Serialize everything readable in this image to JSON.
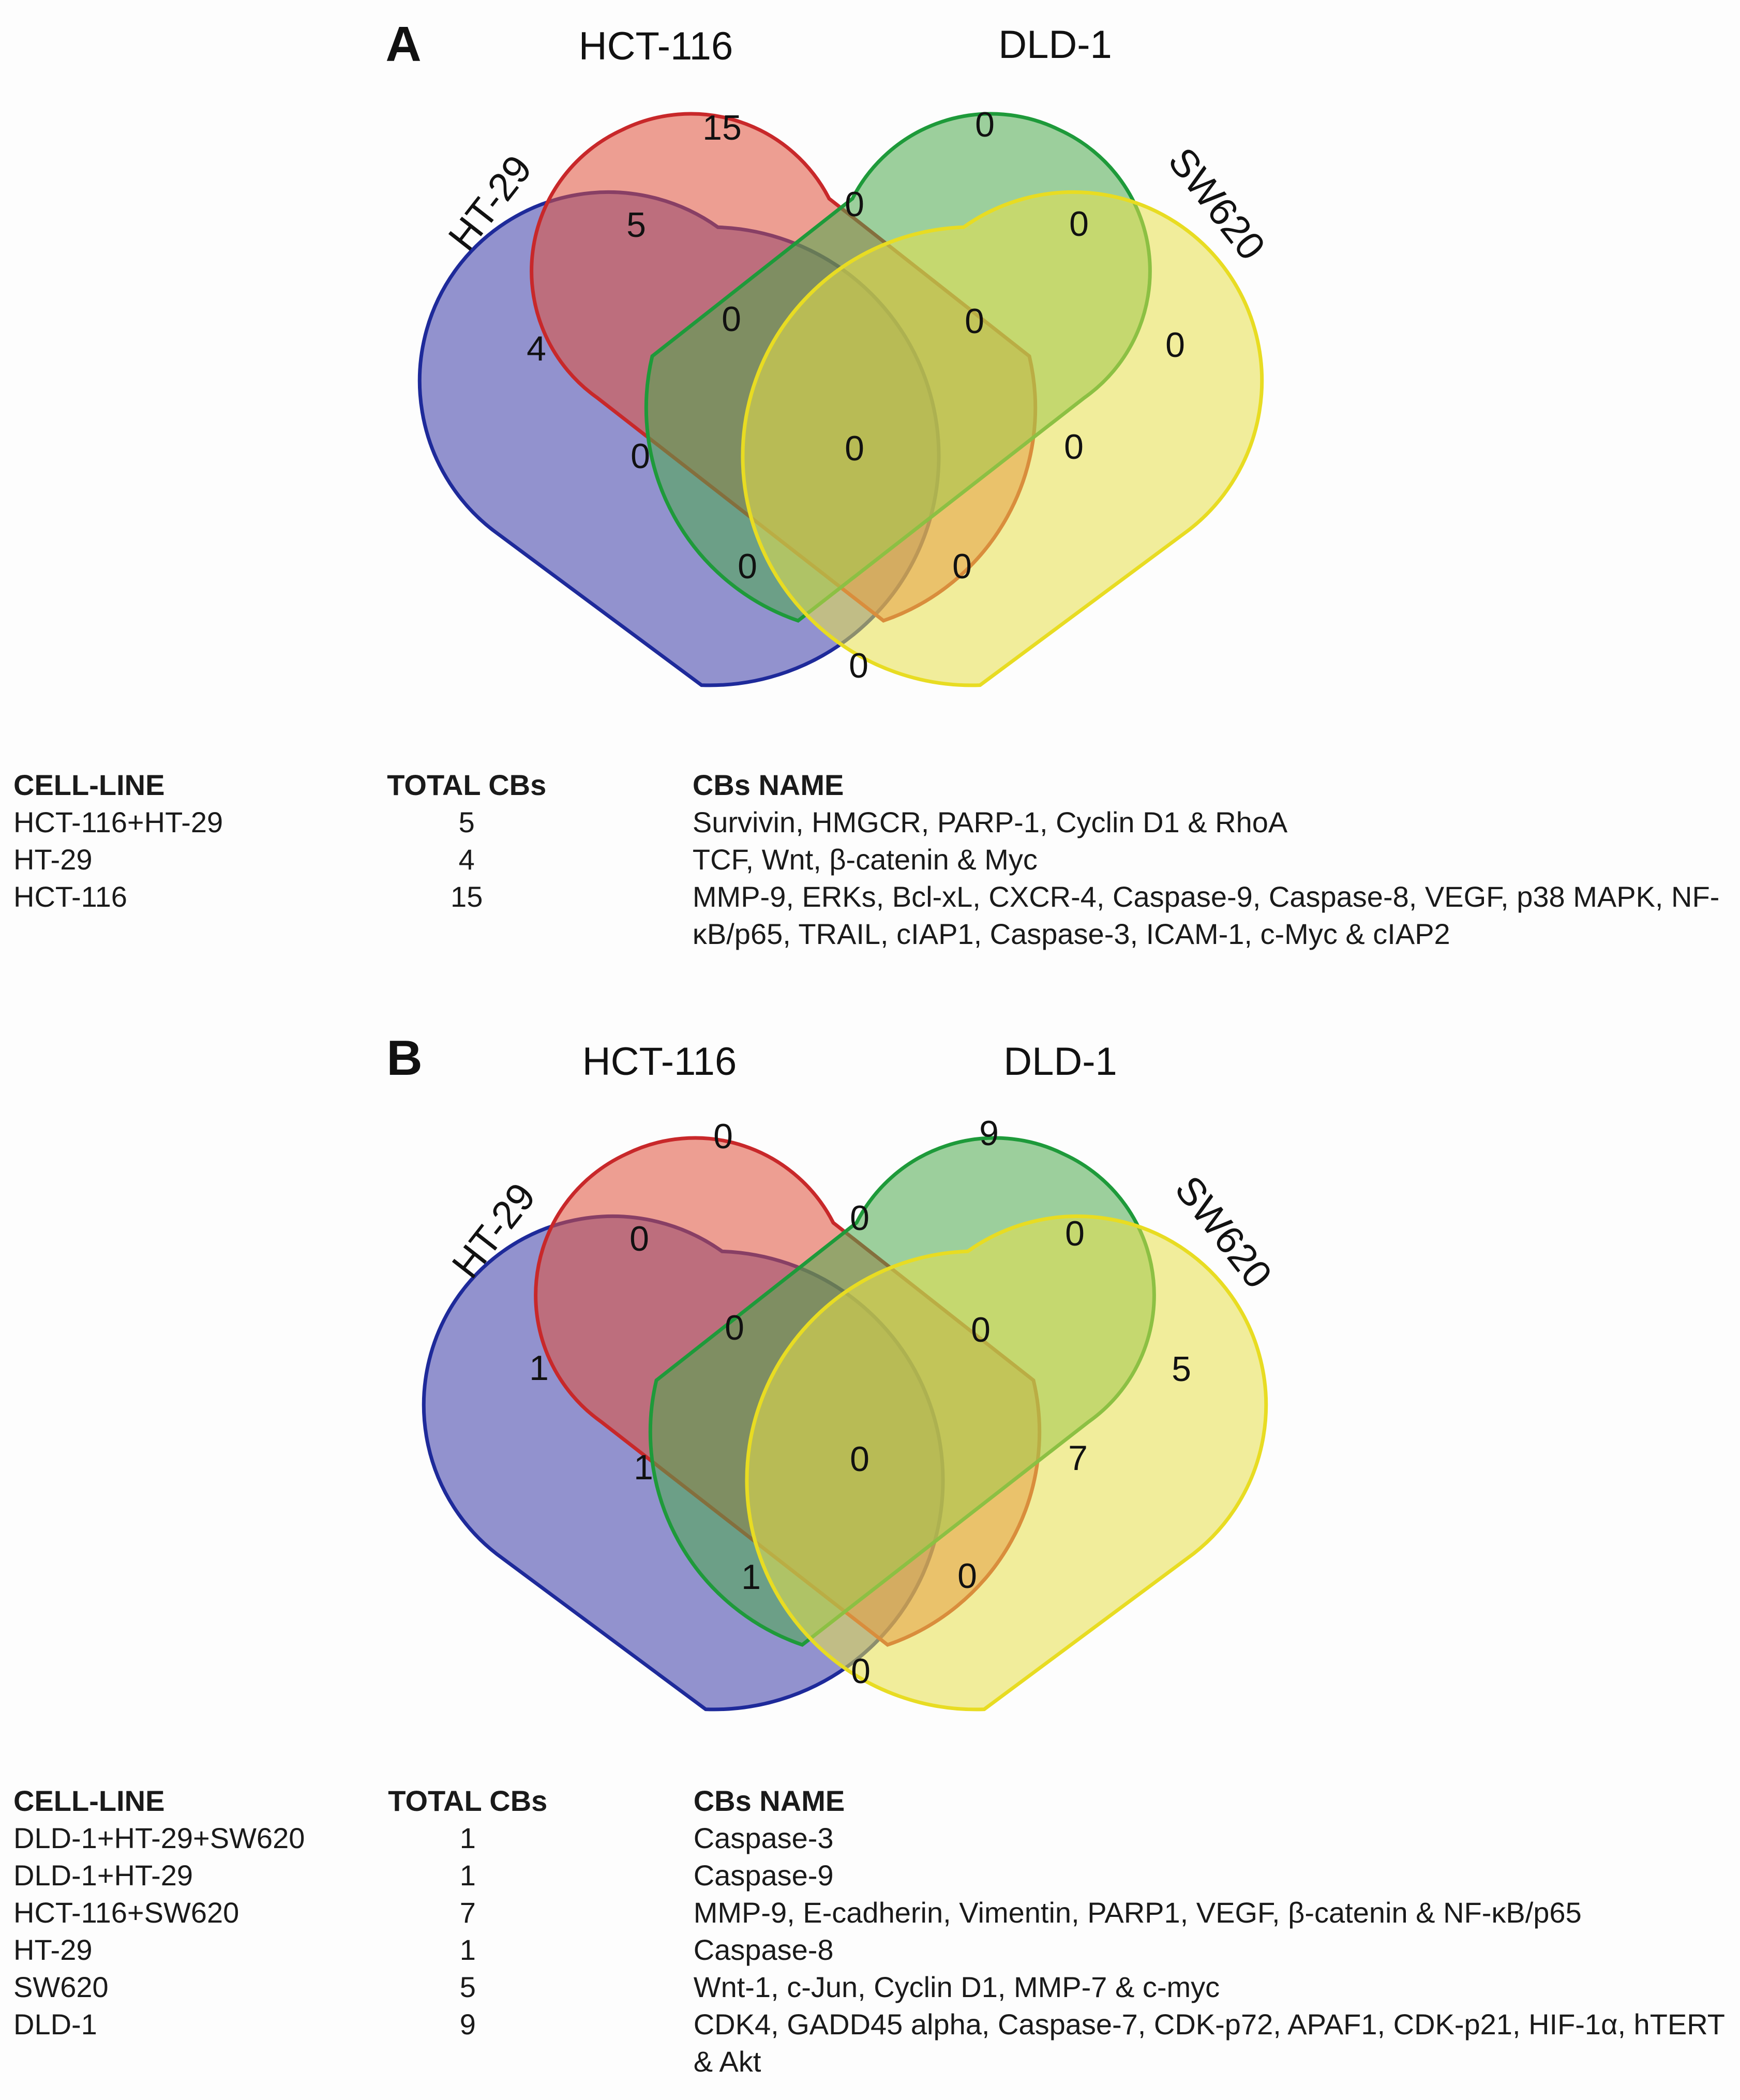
{
  "panels": [
    {
      "letter": "A",
      "sets": [
        "HT-29",
        "HCT-116",
        "DLD-1",
        "SW620"
      ],
      "counts": {
        "ht29_only": "4",
        "hct116_only": "15",
        "dld1_only": "0",
        "sw620_only": "0",
        "ht29_hct116": "5",
        "hct116_dld1": "0",
        "dld1_sw620": "0",
        "ht29_hct116_dld1": "0",
        "hct116_dld1_sw620": "0",
        "ht29_dld1": "0",
        "all_four": "0",
        "hct116_sw620": "0",
        "ht29_dld1_sw620": "0",
        "ht29_hct116_sw620": "0",
        "ht29_sw620": "0"
      },
      "table": {
        "headers": [
          "CELL-LINE",
          "TOTAL CBs",
          "CBs NAME"
        ],
        "rows": [
          {
            "cell_line": "HCT-116+HT-29",
            "total": "5",
            "names": "Survivin, HMGCR, PARP-1, Cyclin D1 & RhoA"
          },
          {
            "cell_line": "HT-29",
            "total": "4",
            "names": "TCF, Wnt, β-catenin & Myc"
          },
          {
            "cell_line": "HCT-116",
            "total": "15",
            "names": "MMP-9, ERKs, Bcl-xL, CXCR-4, Caspase-9, Caspase-8, VEGF, p38 MAPK, NF-κB/p65, TRAIL, cIAP1, Caspase-3, ICAM-1, c-Myc & cIAP2"
          }
        ]
      }
    },
    {
      "letter": "B",
      "sets": [
        "HT-29",
        "HCT-116",
        "DLD-1",
        "SW620"
      ],
      "counts": {
        "ht29_only": "1",
        "hct116_only": "0",
        "dld1_only": "9",
        "sw620_only": "5",
        "ht29_hct116": "0",
        "hct116_dld1": "0",
        "dld1_sw620": "0",
        "ht29_hct116_dld1": "0",
        "hct116_dld1_sw620": "0",
        "ht29_dld1": "1",
        "all_four": "0",
        "hct116_sw620": "7",
        "ht29_dld1_sw620": "1",
        "ht29_hct116_sw620": "0",
        "ht29_sw620": "0"
      },
      "table": {
        "headers": [
          "CELL-LINE",
          "TOTAL CBs",
          "CBs NAME"
        ],
        "rows": [
          {
            "cell_line": "DLD-1+HT-29+SW620",
            "total": "1",
            "names": "Caspase-3"
          },
          {
            "cell_line": "DLD-1+HT-29",
            "total": "1",
            "names": "Caspase-9"
          },
          {
            "cell_line": "HCT-116+SW620",
            "total": "7",
            "names": "MMP-9, E-cadherin, Vimentin, PARP1, VEGF, β-catenin & NF-κB/p65"
          },
          {
            "cell_line": "HT-29",
            "total": "1",
            "names": "Caspase-8"
          },
          {
            "cell_line": "SW620",
            "total": "5",
            "names": "Wnt-1, c-Jun, Cyclin D1, MMP-7 & c-myc"
          },
          {
            "cell_line": "DLD-1",
            "total": "9",
            "names": "CDK4, GADD45 alpha, Caspase-7, CDK-p72, APAF1, CDK-p21, HIF-1α, hTERT & Akt"
          }
        ]
      }
    }
  ],
  "colors": {
    "ht29": "#3a3aa8",
    "hct116": "#e0503a",
    "dld1": "#4caa4c",
    "sw620": "#e8e04a"
  }
}
